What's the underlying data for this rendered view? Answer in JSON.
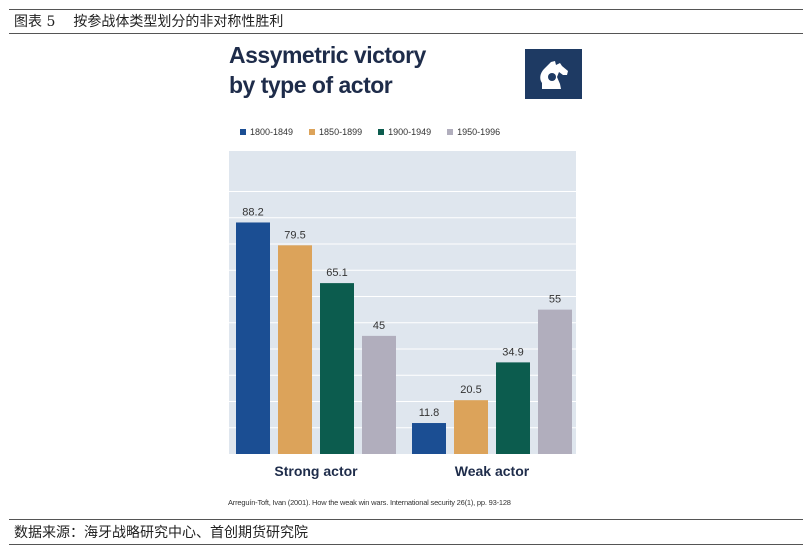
{
  "caption": {
    "label": "图表 5",
    "text": "按参战体类型划分的非对称性胜利"
  },
  "source": "数据来源：海牙战略研究中心、首创期货研究院",
  "figure": {
    "title_line1": "Assymetric victory",
    "title_line2": "by type of actor",
    "logo": "hcss-knight-icon",
    "footnote": "Arreguín-Toft, Ivan (2001). How the weak win wars. International security 26(1), pp. 93-128"
  },
  "colors": {
    "s1": "#1b4e93",
    "s2": "#dca35a",
    "s3": "#0c5c4e",
    "s4": "#b1aebd",
    "plot_bg": "#dfe6ee",
    "title": "#1e2c4a"
  },
  "chart_data": {
    "type": "bar",
    "categories": [
      "Strong actor",
      "Weak actor"
    ],
    "series": [
      {
        "name": "1800-1849",
        "values": [
          88.2,
          11.8
        ]
      },
      {
        "name": "1850-1899",
        "values": [
          79.5,
          20.5
        ]
      },
      {
        "name": "1900-1949",
        "values": [
          65.1,
          34.9
        ]
      },
      {
        "name": "1950-1996",
        "values": [
          45,
          55
        ]
      }
    ],
    "ylim": [
      0,
      100
    ],
    "grid": true,
    "legend": "top"
  }
}
